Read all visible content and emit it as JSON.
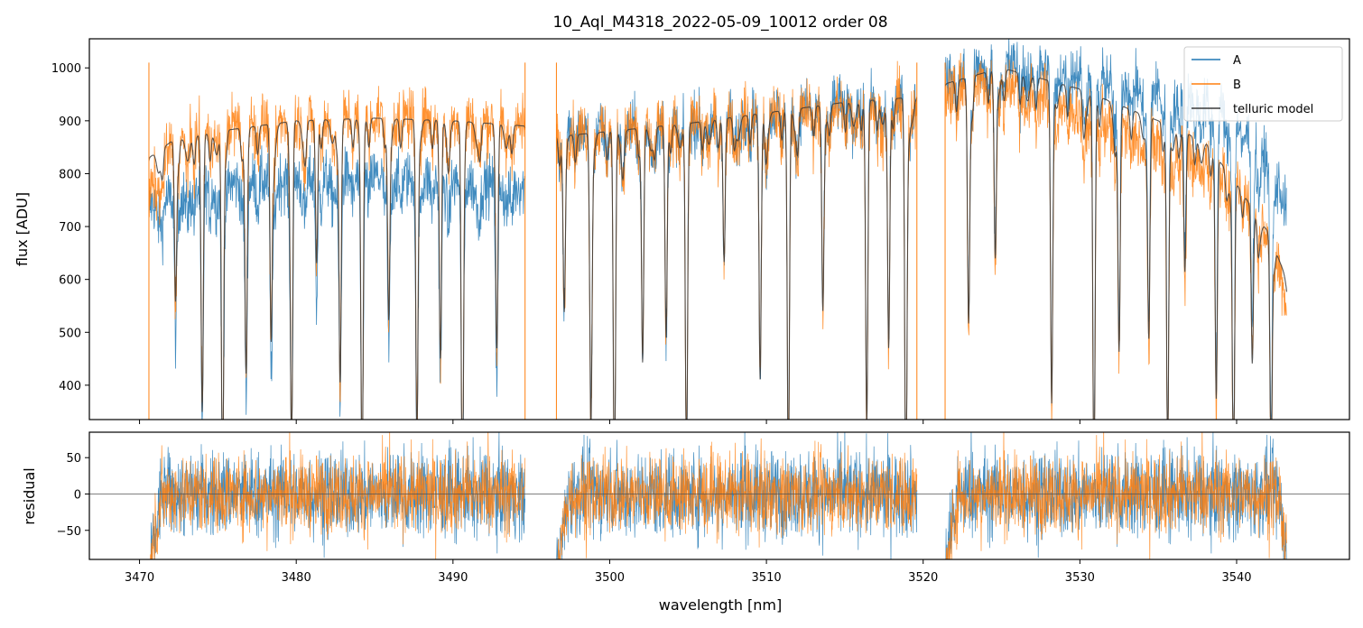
{
  "chart_data": [
    {
      "type": "line",
      "panel": "top",
      "title": "10_Aql_M4318_2022-05-09_10012  order 08",
      "xlabel": "",
      "ylabel": "flux [ADU]",
      "xlim": [
        3466.8,
        3547.2
      ],
      "ylim": [
        335,
        1055
      ],
      "yticks": [
        400,
        500,
        600,
        700,
        800,
        900,
        1000
      ],
      "xticks": [
        3470,
        3480,
        3490,
        3500,
        3510,
        3520,
        3530,
        3540
      ],
      "grid": false,
      "legend": {
        "placement": "top-right",
        "entries": [
          "A",
          "B",
          "telluric model"
        ]
      },
      "x_coverage": [
        [
          3470.6,
          3494.6
        ],
        [
          3496.6,
          3519.6
        ],
        [
          3521.4,
          3543.2
        ]
      ],
      "series": [
        {
          "name": "A",
          "color": "#1f77b4",
          "envelope_x": [
            3470.6,
            3475,
            3480,
            3485,
            3490,
            3494.6,
            3496.6,
            3500,
            3505,
            3510,
            3515,
            3519.6,
            3521.4,
            3525,
            3530,
            3535,
            3538,
            3540,
            3542,
            3543.2
          ],
          "envelope_y": [
            740,
            780,
            790,
            795,
            785,
            775,
            880,
            880,
            895,
            915,
            935,
            945,
            975,
            1010,
            990,
            955,
            935,
            900,
            820,
            740
          ]
        },
        {
          "name": "B",
          "color": "#ff7f0e",
          "envelope_x": [
            3470.6,
            3472,
            3475,
            3480,
            3485,
            3490,
            3494.6,
            3496.6,
            3500,
            3505,
            3510,
            3515,
            3519.6,
            3521.4,
            3525,
            3530,
            3535,
            3538,
            3540,
            3542,
            3543.2
          ],
          "envelope_y": [
            760,
            850,
            890,
            900,
            910,
            905,
            890,
            880,
            880,
            895,
            910,
            925,
            935,
            960,
            980,
            915,
            855,
            830,
            780,
            700,
            560
          ]
        },
        {
          "name": "telluric model",
          "color": "#3a3a3a",
          "envelope_x": [
            3470.6,
            3472,
            3475,
            3480,
            3485,
            3490,
            3494.6,
            3496.6,
            3500,
            3505,
            3510,
            3515,
            3519.6,
            3521.4,
            3525,
            3530,
            3535,
            3538,
            3540,
            3542,
            3543.2
          ],
          "envelope_y": [
            830,
            860,
            880,
            900,
            905,
            900,
            890,
            870,
            880,
            895,
            915,
            935,
            945,
            970,
            1000,
            960,
            900,
            860,
            780,
            690,
            600
          ]
        }
      ],
      "absorption_lines": [
        3472.3,
        3474.0,
        3475.3,
        3476.8,
        3478.4,
        3479.7,
        3481.3,
        3482.8,
        3484.2,
        3485.9,
        3487.7,
        3489.2,
        3490.6,
        3492.8,
        3497.1,
        3498.8,
        3500.3,
        3502.1,
        3503.6,
        3504.9,
        3507.3,
        3509.6,
        3511.4,
        3513.6,
        3516.4,
        3517.8,
        3518.9,
        3522.9,
        3524.6,
        3528.2,
        3530.9,
        3532.5,
        3534.4,
        3535.6,
        3536.7,
        3538.7,
        3539.8,
        3541.0,
        3542.2
      ]
    },
    {
      "type": "line",
      "panel": "bottom",
      "xlabel": "wavelength [nm]",
      "ylabel": "residual",
      "xlim": [
        3466.8,
        3547.2
      ],
      "ylim": [
        -90,
        85
      ],
      "yticks": [
        -50,
        0,
        50
      ],
      "xticks": [
        3470,
        3480,
        3490,
        3500,
        3510,
        3520,
        3530,
        3540
      ],
      "zero_line": 0,
      "series": [
        {
          "name": "A",
          "color": "#1f77b4",
          "spread": 30
        },
        {
          "name": "B",
          "color": "#ff7f0e",
          "spread": 27
        }
      ]
    }
  ]
}
